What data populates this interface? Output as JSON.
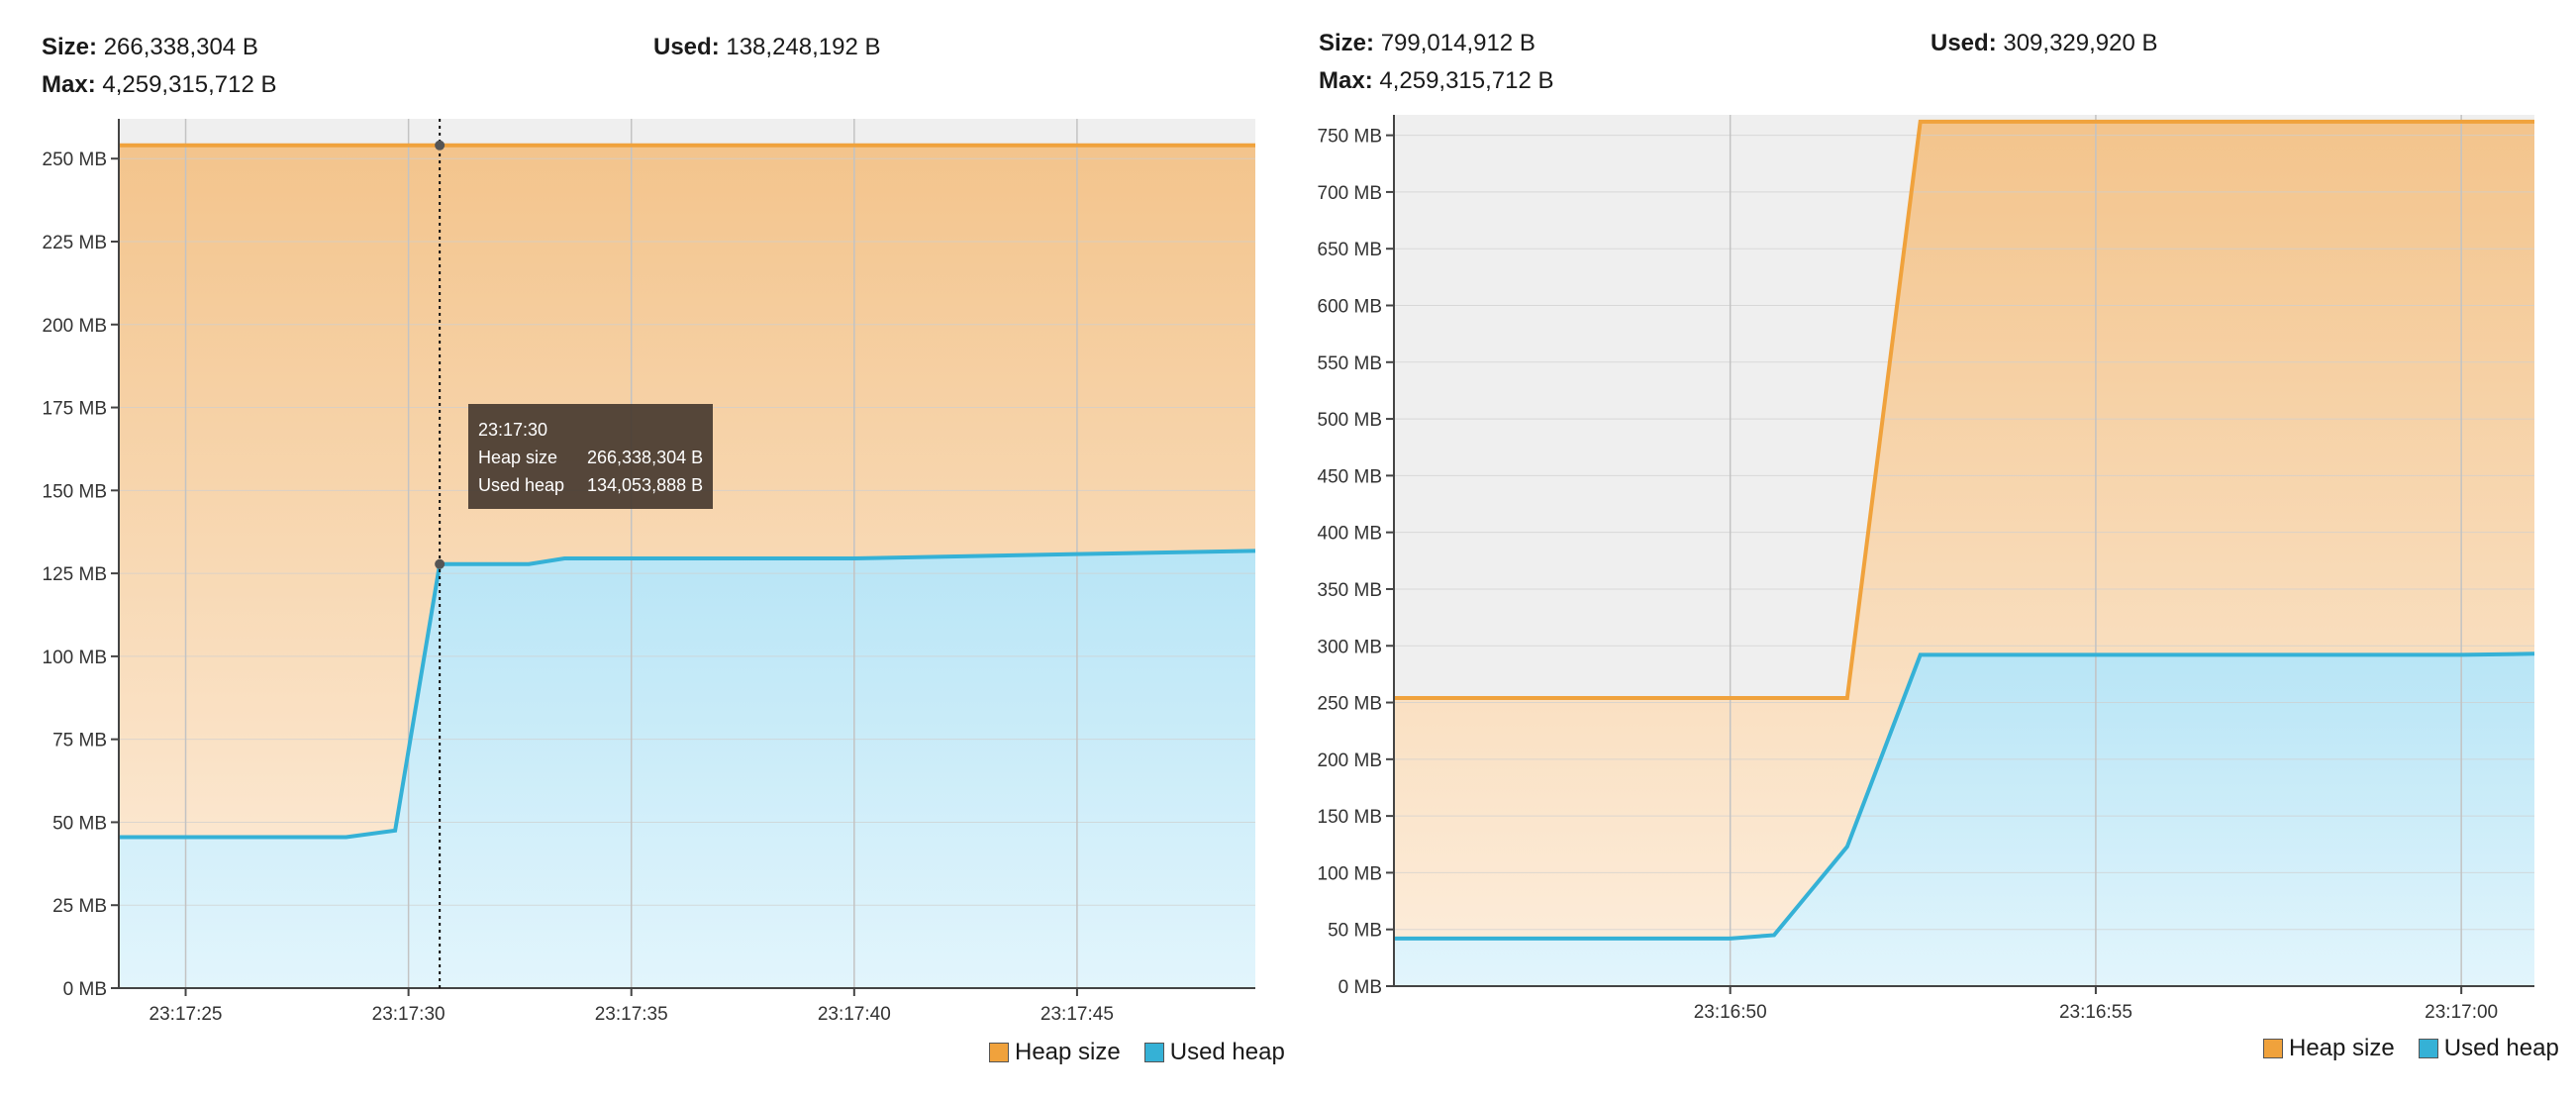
{
  "colors": {
    "heap": "#f0a23c",
    "used": "#35b1d6",
    "heap_fill_top": "#f3c48c",
    "heap_fill_bottom": "#fdeedd",
    "used_fill_top": "#b8e5f6",
    "used_fill_bottom": "#e2f5fc",
    "plot_bg": "#efefef",
    "grid": "#cfcfcf"
  },
  "legend": {
    "heap_label": "Heap size",
    "used_label": "Used heap"
  },
  "left": {
    "size_label": "Size:",
    "size_value": "266,338,304 B",
    "used_label": "Used:",
    "used_value": "138,248,192 B",
    "max_label": "Max:",
    "max_value": "4,259,315,712 B",
    "tooltip": {
      "time": "23:17:30",
      "heap_label": "Heap size",
      "heap_value": "266,338,304 B",
      "used_label": "Used heap",
      "used_value": "134,053,888 B"
    }
  },
  "right": {
    "size_label": "Size:",
    "size_value": "799,014,912 B",
    "used_label": "Used:",
    "used_value": "309,329,920 B",
    "max_label": "Max:",
    "max_value": "4,259,315,712 B"
  },
  "chart_data": [
    {
      "type": "area",
      "y_unit": "MB",
      "ylim": [
        0,
        262
      ],
      "y_ticks": [
        "0 MB",
        "25 MB",
        "50 MB",
        "75 MB",
        "100 MB",
        "125 MB",
        "150 MB",
        "175 MB",
        "200 MB",
        "225 MB",
        "250 MB"
      ],
      "y_tick_values": [
        0,
        25,
        50,
        75,
        100,
        125,
        150,
        175,
        200,
        225,
        250
      ],
      "xlim": [
        -1.5,
        24
      ],
      "x_ticks": [
        "23:17:25",
        "23:17:30",
        "23:17:35",
        "23:17:40",
        "23:17:45"
      ],
      "x_tick_values": [
        0,
        5,
        10,
        15,
        20
      ],
      "grid": true,
      "legend_position": "bottom-right",
      "crosshair_x": 5.7,
      "series": [
        {
          "name": "Heap size",
          "x": [
            -1.5,
            24
          ],
          "values": [
            254,
            254
          ]
        },
        {
          "name": "Used heap",
          "x": [
            -1.5,
            3.6,
            4.7,
            5.7,
            7.7,
            8.5,
            10.5,
            15,
            20,
            24
          ],
          "values": [
            45.5,
            45.5,
            47.5,
            127.8,
            127.8,
            129.5,
            129.5,
            129.5,
            130.8,
            131.8
          ]
        }
      ]
    },
    {
      "type": "area",
      "y_unit": "MB",
      "ylim": [
        0,
        768
      ],
      "y_ticks": [
        "0 MB",
        "50 MB",
        "100 MB",
        "150 MB",
        "200 MB",
        "250 MB",
        "300 MB",
        "350 MB",
        "400 MB",
        "450 MB",
        "500 MB",
        "550 MB",
        "600 MB",
        "650 MB",
        "700 MB",
        "750 MB"
      ],
      "y_tick_values": [
        0,
        50,
        100,
        150,
        200,
        250,
        300,
        350,
        400,
        450,
        500,
        550,
        600,
        650,
        700,
        750
      ],
      "xlim": [
        -4.6,
        11
      ],
      "x_ticks": [
        "23:16:50",
        "23:16:55",
        "23:17:00"
      ],
      "x_tick_values": [
        0,
        5,
        10
      ],
      "grid": true,
      "legend_position": "bottom-right",
      "series": [
        {
          "name": "Heap size",
          "x": [
            -4.6,
            1.6,
            2.6,
            11
          ],
          "values": [
            254,
            254,
            762,
            762
          ]
        },
        {
          "name": "Used heap",
          "x": [
            -4.6,
            0,
            0.6,
            1.6,
            2.6,
            5,
            10,
            11
          ],
          "values": [
            42,
            42,
            45,
            123,
            292,
            292,
            292,
            293
          ]
        }
      ]
    }
  ]
}
